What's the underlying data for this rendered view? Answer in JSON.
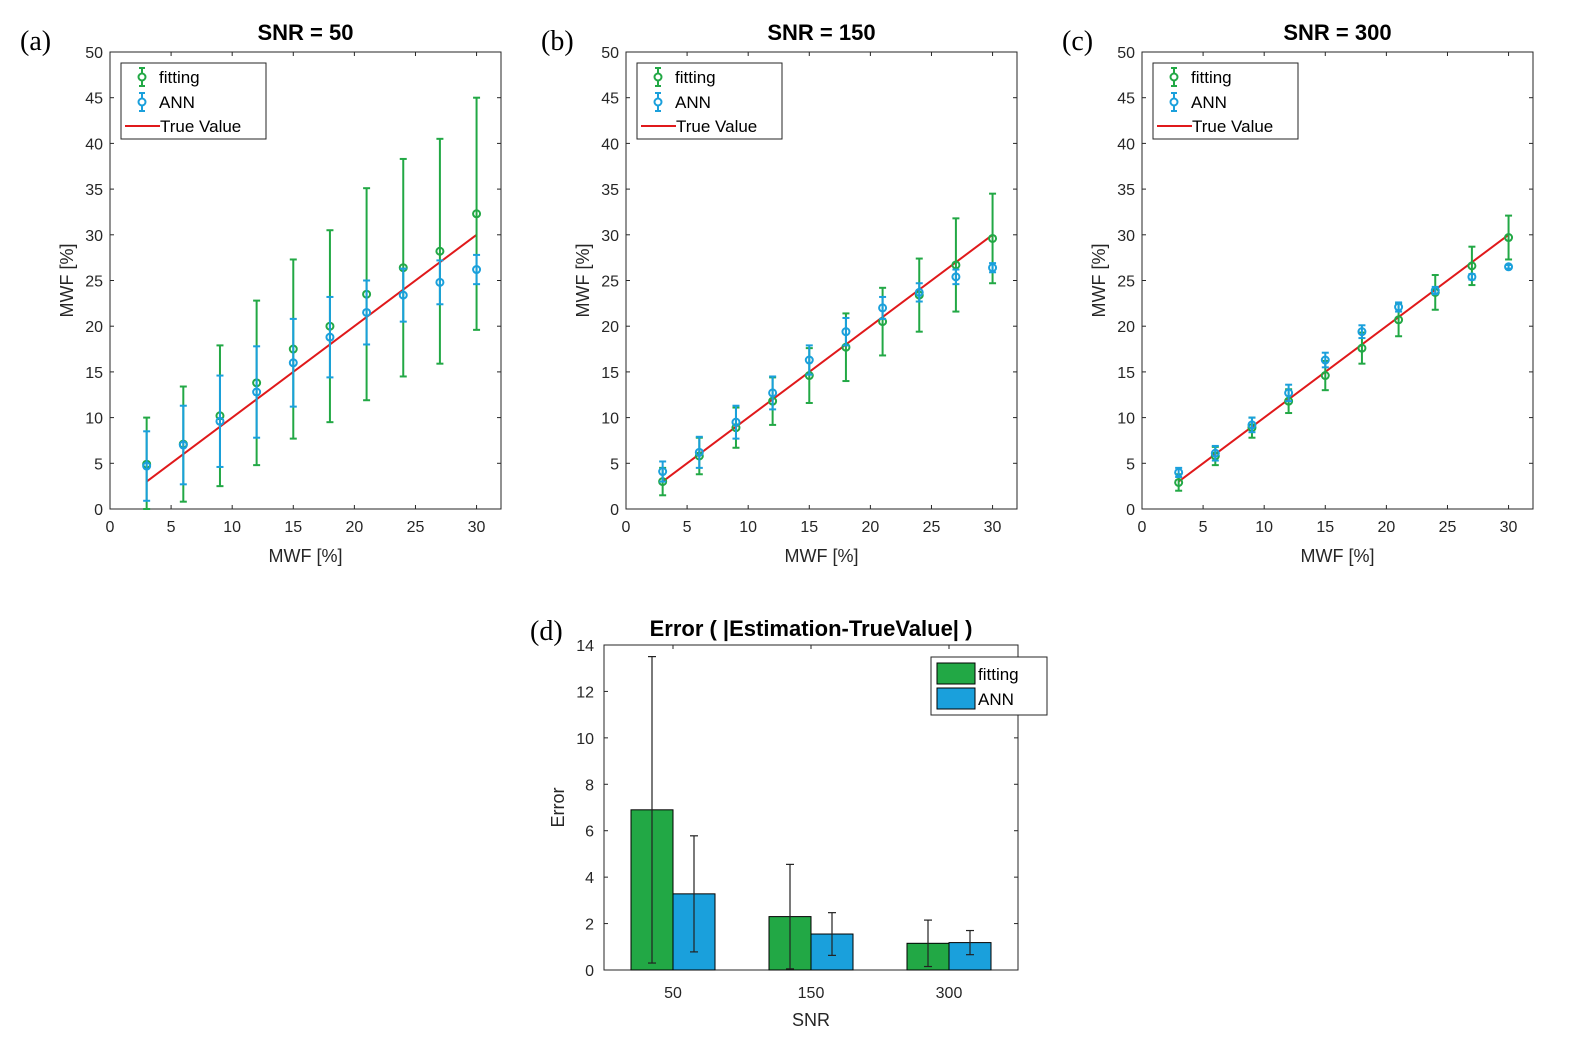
{
  "colors": {
    "fitting": "#22a845",
    "ann": "#1aa0dc",
    "true_value": "#e0191b",
    "error_bar": "#222222"
  },
  "chart_data": [
    {
      "type": "scatter",
      "panel_label": "(a)",
      "title": "SNR = 50",
      "xlabel": "MWF [%]",
      "ylabel": "MWF [%]",
      "xlim": [
        0,
        32
      ],
      "ylim": [
        0,
        50
      ],
      "xticks": [
        0,
        5,
        10,
        15,
        20,
        25,
        30
      ],
      "yticks": [
        0,
        5,
        10,
        15,
        20,
        25,
        30,
        35,
        40,
        45,
        50
      ],
      "legend": [
        "fitting",
        "ANN",
        "True Value"
      ],
      "legend_location": "top-left",
      "x": [
        3,
        6,
        9,
        12,
        15,
        18,
        21,
        24,
        27,
        30
      ],
      "true_value": {
        "name": "True Value",
        "x": [
          3,
          30
        ],
        "y": [
          3,
          30
        ]
      },
      "series": [
        {
          "name": "fitting",
          "mean": [
            4.9,
            7.1,
            10.2,
            13.8,
            17.5,
            20.0,
            23.5,
            26.4,
            28.2,
            32.3
          ],
          "std": [
            5.1,
            6.3,
            7.7,
            9.0,
            9.8,
            10.5,
            11.6,
            11.9,
            12.3,
            12.7
          ]
        },
        {
          "name": "ANN",
          "mean": [
            4.7,
            7.0,
            9.6,
            12.8,
            16.0,
            18.8,
            21.5,
            23.4,
            24.8,
            26.2
          ],
          "std": [
            3.8,
            4.3,
            5.0,
            5.0,
            4.8,
            4.4,
            3.5,
            2.9,
            2.4,
            1.6
          ]
        }
      ]
    },
    {
      "type": "scatter",
      "panel_label": "(b)",
      "title": "SNR = 150",
      "xlabel": "MWF [%]",
      "ylabel": "MWF [%]",
      "xlim": [
        0,
        32
      ],
      "ylim": [
        0,
        50
      ],
      "xticks": [
        0,
        5,
        10,
        15,
        20,
        25,
        30
      ],
      "yticks": [
        0,
        5,
        10,
        15,
        20,
        25,
        30,
        35,
        40,
        45,
        50
      ],
      "legend": [
        "fitting",
        "ANN",
        "True Value"
      ],
      "legend_location": "top-left",
      "x": [
        3,
        6,
        9,
        12,
        15,
        18,
        21,
        24,
        27,
        30
      ],
      "true_value": {
        "name": "True Value",
        "x": [
          3,
          30
        ],
        "y": [
          3,
          30
        ]
      },
      "series": [
        {
          "name": "fitting",
          "mean": [
            3.0,
            5.8,
            8.9,
            11.8,
            14.6,
            17.7,
            20.5,
            23.4,
            26.7,
            29.6
          ],
          "std": [
            1.5,
            2.0,
            2.2,
            2.6,
            3.0,
            3.7,
            3.7,
            4.0,
            5.1,
            4.9
          ]
        },
        {
          "name": "ANN",
          "mean": [
            4.1,
            6.2,
            9.5,
            12.7,
            16.3,
            19.4,
            22.0,
            23.7,
            25.4,
            26.4
          ],
          "std": [
            1.1,
            1.7,
            1.8,
            1.8,
            1.6,
            1.5,
            1.2,
            1.0,
            0.8,
            0.5
          ]
        }
      ]
    },
    {
      "type": "scatter",
      "panel_label": "(c)",
      "title": "SNR = 300",
      "xlabel": "MWF [%]",
      "ylabel": "MWF [%]",
      "xlim": [
        0,
        32
      ],
      "ylim": [
        0,
        50
      ],
      "xticks": [
        0,
        5,
        10,
        15,
        20,
        25,
        30
      ],
      "yticks": [
        0,
        5,
        10,
        15,
        20,
        25,
        30,
        35,
        40,
        45,
        50
      ],
      "legend": [
        "fitting",
        "ANN",
        "True Value"
      ],
      "legend_location": "top-left",
      "x": [
        3,
        6,
        9,
        12,
        15,
        18,
        21,
        24,
        27,
        30
      ],
      "true_value": {
        "name": "True Value",
        "x": [
          3,
          30
        ],
        "y": [
          3,
          30
        ]
      },
      "series": [
        {
          "name": "fitting",
          "mean": [
            2.9,
            5.8,
            8.9,
            11.8,
            14.6,
            17.6,
            20.7,
            23.7,
            26.6,
            29.7
          ],
          "std": [
            0.9,
            1.0,
            1.1,
            1.3,
            1.6,
            1.7,
            1.8,
            1.9,
            2.1,
            2.4
          ]
        },
        {
          "name": "ANN",
          "mean": [
            4.0,
            6.1,
            9.2,
            12.7,
            16.3,
            19.4,
            22.1,
            23.9,
            25.4,
            26.5
          ],
          "std": [
            0.5,
            0.8,
            0.8,
            0.9,
            0.8,
            0.7,
            0.5,
            0.4,
            0.3,
            0.2
          ]
        }
      ]
    },
    {
      "type": "bar",
      "panel_label": "(d)",
      "title": "Error ( |Estimation-TrueValue| )",
      "xlabel": "SNR",
      "ylabel": "Error",
      "categories": [
        "50",
        "150",
        "300"
      ],
      "ylim": [
        0,
        14
      ],
      "yticks": [
        0,
        2,
        4,
        6,
        8,
        10,
        12,
        14
      ],
      "legend": [
        "fitting",
        "ANN"
      ],
      "legend_location": "top-right",
      "series": [
        {
          "name": "fitting",
          "values": [
            6.9,
            2.3,
            1.15
          ],
          "errors": [
            6.6,
            2.25,
            1.0
          ]
        },
        {
          "name": "ANN",
          "values": [
            3.28,
            1.55,
            1.18
          ],
          "errors": [
            2.5,
            0.92,
            0.52
          ]
        }
      ]
    }
  ]
}
